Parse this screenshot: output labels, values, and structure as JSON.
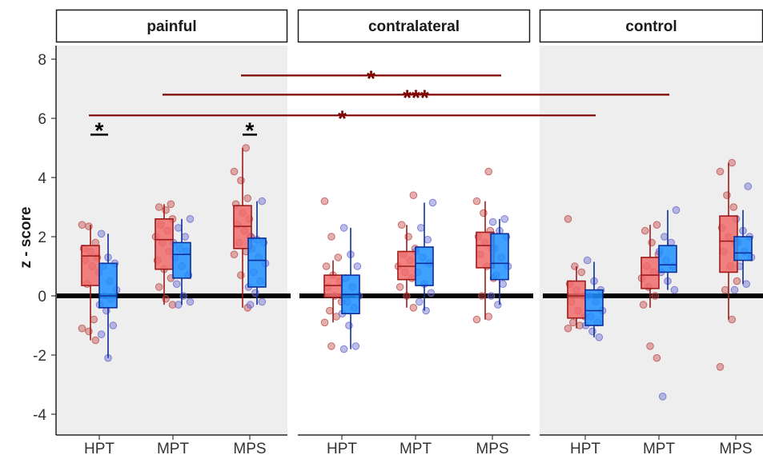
{
  "chart_data": {
    "type": "box",
    "ylabel": "z - score",
    "ylim": [
      -4.6,
      9.0
    ],
    "yticks": [
      -4,
      -2,
      0,
      2,
      4,
      6,
      8
    ],
    "panels": [
      "painful",
      "contralateral",
      "control"
    ],
    "categories": [
      "HPT",
      "MPT",
      "MPS"
    ],
    "colors": {
      "red_fill": "#f06b6b",
      "red_edge": "#9e1b1b",
      "red_point": "#c0504d",
      "blue_fill": "#1e8fff",
      "blue_edge": "#0d2f9a",
      "blue_point": "#6c6cd0",
      "panel_shaded": "#eeeeee",
      "significance": "#7f0000",
      "reference": "#000000"
    },
    "reference_line_y": 0,
    "boxes": {
      "painful": {
        "HPT": {
          "red": [
            -1.5,
            0.35,
            1.35,
            1.7,
            2.4
          ],
          "blue": [
            -2.1,
            -0.4,
            0.0,
            1.1,
            2.1
          ]
        },
        "MPT": {
          "red": [
            -0.3,
            0.9,
            1.9,
            2.6,
            3.1
          ],
          "blue": [
            -0.3,
            0.6,
            1.4,
            1.8,
            2.6
          ]
        },
        "MPS": {
          "red": [
            -0.4,
            1.6,
            2.35,
            3.05,
            5.0
          ],
          "blue": [
            -0.3,
            0.3,
            1.2,
            1.95,
            3.2
          ]
        }
      },
      "contralateral": {
        "HPT": {
          "red": [
            -0.9,
            -0.05,
            0.35,
            0.7,
            1.2
          ],
          "blue": [
            -1.8,
            -0.6,
            0.05,
            0.7,
            2.3
          ]
        },
        "MPT": {
          "red": [
            -0.4,
            0.55,
            1.0,
            1.5,
            2.4
          ],
          "blue": [
            -0.5,
            0.35,
            1.1,
            1.65,
            3.15
          ]
        },
        "MPS": {
          "red": [
            -0.8,
            0.95,
            1.7,
            2.15,
            3.2
          ],
          "blue": [
            -0.3,
            0.55,
            1.1,
            2.1,
            2.6
          ]
        }
      },
      "control": {
        "HPT": {
          "red": [
            -1.1,
            -0.75,
            0.0,
            0.5,
            1.0
          ],
          "blue": [
            -1.4,
            -1.0,
            -0.5,
            0.2,
            1.15
          ]
        },
        "MPT": {
          "red": [
            -0.4,
            0.25,
            0.7,
            1.3,
            2.4
          ],
          "blue": [
            0.2,
            0.8,
            1.05,
            1.7,
            2.9
          ]
        },
        "MPS": {
          "red": [
            -0.8,
            0.8,
            1.85,
            2.7,
            4.5
          ],
          "blue": [
            0.4,
            1.2,
            1.45,
            2.0,
            2.9
          ]
        }
      }
    },
    "points": {
      "painful": {
        "HPT": {
          "red": [
            2.4,
            2.35,
            1.8,
            1.6,
            1.5,
            1.3,
            1.2,
            1.0,
            0.8,
            0.4,
            -0.8,
            -1.1,
            -1.2,
            -1.5
          ],
          "blue": [
            2.1,
            1.3,
            1.1,
            1.0,
            0.5,
            0.2,
            0.0,
            -0.1,
            -0.3,
            -0.5,
            -1.0,
            -1.3,
            -2.1
          ]
        },
        "MPT": {
          "red": [
            3.1,
            3.0,
            2.9,
            2.6,
            2.4,
            2.2,
            2.0,
            1.8,
            1.5,
            1.2,
            0.9,
            0.6,
            0.3,
            -0.1,
            -0.3
          ],
          "blue": [
            2.6,
            2.3,
            2.0,
            1.8,
            1.6,
            1.5,
            1.3,
            1.0,
            0.7,
            0.4,
            0.0,
            -0.2,
            -0.3
          ]
        },
        "MPS": {
          "red": [
            5.0,
            4.2,
            3.9,
            3.3,
            3.1,
            2.8,
            2.6,
            2.4,
            2.2,
            2.0,
            1.8,
            1.5,
            1.4,
            0.7,
            -0.4
          ],
          "blue": [
            3.2,
            2.0,
            1.9,
            1.8,
            1.6,
            1.3,
            1.1,
            0.8,
            0.5,
            0.3,
            0.1,
            -0.2,
            -0.3
          ]
        }
      },
      "contralateral": {
        "HPT": {
          "red": [
            3.2,
            2.0,
            1.3,
            1.0,
            0.7,
            0.5,
            0.3,
            0.0,
            -0.2,
            -0.5,
            -0.7,
            -0.9,
            -1.7
          ],
          "blue": [
            2.3,
            1.4,
            1.0,
            0.6,
            0.3,
            0.0,
            -0.2,
            -0.4,
            -0.6,
            -1.0,
            -1.7,
            -1.8
          ]
        },
        "MPT": {
          "red": [
            3.4,
            2.4,
            2.0,
            1.6,
            1.4,
            1.2,
            1.0,
            0.8,
            0.6,
            0.3,
            0.0,
            -0.4
          ],
          "blue": [
            3.15,
            2.3,
            1.9,
            1.5,
            1.3,
            1.1,
            0.8,
            0.4,
            0.1,
            -0.2,
            -0.5
          ]
        },
        "MPS": {
          "red": [
            4.2,
            3.2,
            2.8,
            2.2,
            2.0,
            1.8,
            1.6,
            1.4,
            1.0,
            0.6,
            0.0,
            -0.7,
            -0.8
          ],
          "blue": [
            2.6,
            2.5,
            2.2,
            2.0,
            1.6,
            1.3,
            1.0,
            0.7,
            0.4,
            0.0,
            -0.3
          ]
        }
      },
      "control": {
        "HPT": {
          "red": [
            2.6,
            1.0,
            0.8,
            0.4,
            0.2,
            0.0,
            -0.2,
            -0.5,
            -0.7,
            -0.9,
            -1.0,
            -1.1
          ],
          "blue": [
            1.2,
            0.5,
            0.2,
            0.0,
            -0.2,
            -0.5,
            -0.7,
            -0.9,
            -1.0,
            -1.2,
            -1.4
          ]
        },
        "MPT": {
          "red": [
            2.4,
            2.2,
            1.8,
            1.4,
            1.0,
            0.8,
            0.6,
            0.3,
            0.0,
            -0.3,
            -1.7,
            -2.1
          ],
          "blue": [
            2.9,
            2.0,
            1.8,
            1.5,
            1.2,
            1.0,
            0.8,
            0.5,
            0.2,
            -3.4
          ]
        },
        "MPS": {
          "red": [
            4.5,
            4.2,
            3.4,
            3.0,
            2.3,
            2.0,
            1.8,
            1.5,
            1.0,
            0.5,
            0.2,
            -0.8,
            -2.4
          ],
          "blue": [
            3.7,
            2.6,
            2.2,
            2.0,
            1.8,
            1.5,
            1.3,
            1.0,
            0.4,
            0.2
          ]
        }
      }
    },
    "significance": {
      "within": [
        {
          "panel": "painful",
          "category": "HPT",
          "y": 5.45,
          "label": "*"
        },
        {
          "panel": "painful",
          "category": "MPS",
          "y": 5.45,
          "label": "*"
        }
      ],
      "between": [
        {
          "from_panel": "painful",
          "from": "MPS",
          "to_panel": "contralateral",
          "to": "MPS",
          "y": 7.45,
          "label": "*"
        },
        {
          "from_panel": "painful",
          "from": "MPT",
          "to_panel": "control",
          "to": "MPT",
          "y": 6.8,
          "label": "***"
        },
        {
          "from_panel": "painful",
          "from": "HPT",
          "to_panel": "control",
          "to": "HPT",
          "y": 6.1,
          "label": "*"
        }
      ]
    }
  }
}
